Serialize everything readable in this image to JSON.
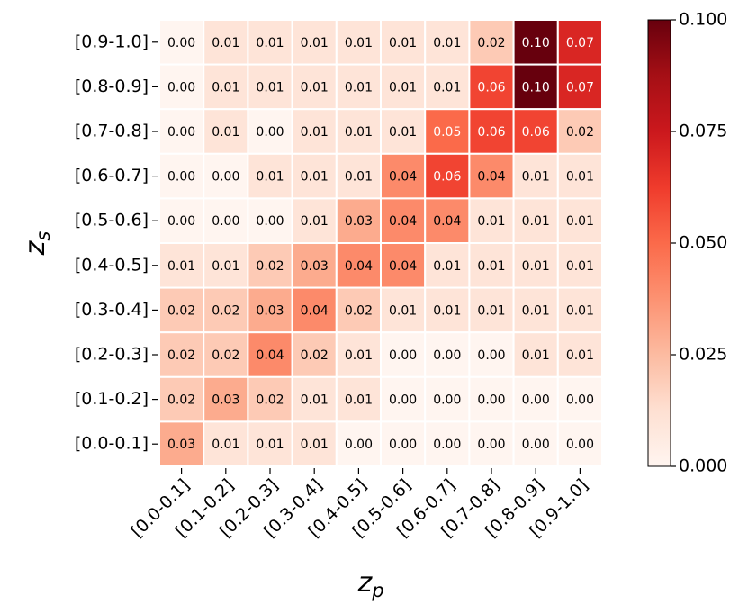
{
  "chart_data": {
    "type": "heatmap",
    "xlabel": "z",
    "xlabel_sub": "p",
    "ylabel": "z",
    "ylabel_sub": "s",
    "x_categories": [
      "[0.0-0.1]",
      "[0.1-0.2]",
      "[0.2-0.3]",
      "[0.3-0.4]",
      "[0.4-0.5]",
      "[0.5-0.6]",
      "[0.6-0.7]",
      "[0.7-0.8]",
      "[0.8-0.9]",
      "[0.9-1.0]"
    ],
    "y_categories": [
      "[0.9-1.0]",
      "[0.8-0.9]",
      "[0.7-0.8]",
      "[0.6-0.7]",
      "[0.5-0.6]",
      "[0.4-0.5]",
      "[0.3-0.4]",
      "[0.2-0.3]",
      "[0.1-0.2]",
      "[0.0-0.1]"
    ],
    "values": [
      [
        0.0,
        0.01,
        0.01,
        0.01,
        0.01,
        0.01,
        0.01,
        0.02,
        0.1,
        0.07
      ],
      [
        0.0,
        0.01,
        0.01,
        0.01,
        0.01,
        0.01,
        0.01,
        0.06,
        0.1,
        0.07
      ],
      [
        0.0,
        0.01,
        0.0,
        0.01,
        0.01,
        0.01,
        0.05,
        0.06,
        0.06,
        0.02
      ],
      [
        0.0,
        0.0,
        0.01,
        0.01,
        0.01,
        0.04,
        0.06,
        0.04,
        0.01,
        0.01
      ],
      [
        0.0,
        0.0,
        0.0,
        0.01,
        0.03,
        0.04,
        0.04,
        0.01,
        0.01,
        0.01
      ],
      [
        0.01,
        0.01,
        0.02,
        0.03,
        0.04,
        0.04,
        0.01,
        0.01,
        0.01,
        0.01
      ],
      [
        0.02,
        0.02,
        0.03,
        0.04,
        0.02,
        0.01,
        0.01,
        0.01,
        0.01,
        0.01
      ],
      [
        0.02,
        0.02,
        0.04,
        0.02,
        0.01,
        0.0,
        0.0,
        0.0,
        0.01,
        0.01
      ],
      [
        0.02,
        0.03,
        0.02,
        0.01,
        0.01,
        0.0,
        0.0,
        0.0,
        0.0,
        0.0
      ],
      [
        0.03,
        0.01,
        0.01,
        0.01,
        0.0,
        0.0,
        0.0,
        0.0,
        0.0,
        0.0
      ]
    ],
    "value_labels": [
      [
        "0.00",
        "0.01",
        "0.01",
        "0.01",
        "0.01",
        "0.01",
        "0.01",
        "0.02",
        "0.10",
        "0.07"
      ],
      [
        "0.00",
        "0.01",
        "0.01",
        "0.01",
        "0.01",
        "0.01",
        "0.01",
        "0.06",
        "0.10",
        "0.07"
      ],
      [
        "0.00",
        "0.01",
        "0.00",
        "0.01",
        "0.01",
        "0.01",
        "0.05",
        "0.06",
        "0.06",
        "0.02"
      ],
      [
        "0.00",
        "0.00",
        "0.01",
        "0.01",
        "0.01",
        "0.04",
        "0.06",
        "0.04",
        "0.01",
        "0.01"
      ],
      [
        "0.00",
        "0.00",
        "0.00",
        "0.01",
        "0.03",
        "0.04",
        "0.04",
        "0.01",
        "0.01",
        "0.01"
      ],
      [
        "0.01",
        "0.01",
        "0.02",
        "0.03",
        "0.04",
        "0.04",
        "0.01",
        "0.01",
        "0.01",
        "0.01"
      ],
      [
        "0.02",
        "0.02",
        "0.03",
        "0.04",
        "0.02",
        "0.01",
        "0.01",
        "0.01",
        "0.01",
        "0.01"
      ],
      [
        "0.02",
        "0.02",
        "0.04",
        "0.02",
        "0.01",
        "0.00",
        "0.00",
        "0.00",
        "0.01",
        "0.01"
      ],
      [
        "0.02",
        "0.03",
        "0.02",
        "0.01",
        "0.01",
        "0.00",
        "0.00",
        "0.00",
        "0.00",
        "0.00"
      ],
      [
        "0.03",
        "0.01",
        "0.01",
        "0.01",
        "0.00",
        "0.00",
        "0.00",
        "0.00",
        "0.00",
        "0.00"
      ]
    ],
    "colormap": "Reds",
    "clim": [
      0,
      0.1
    ],
    "cticks": [
      {
        "value": 0,
        "label": "0.000"
      },
      {
        "value": 0.025,
        "label": "0.025"
      },
      {
        "value": 0.05,
        "label": "0.050"
      },
      {
        "value": 0.075,
        "label": "0.075"
      },
      {
        "value": 0.1,
        "label": "0.100"
      }
    ]
  }
}
